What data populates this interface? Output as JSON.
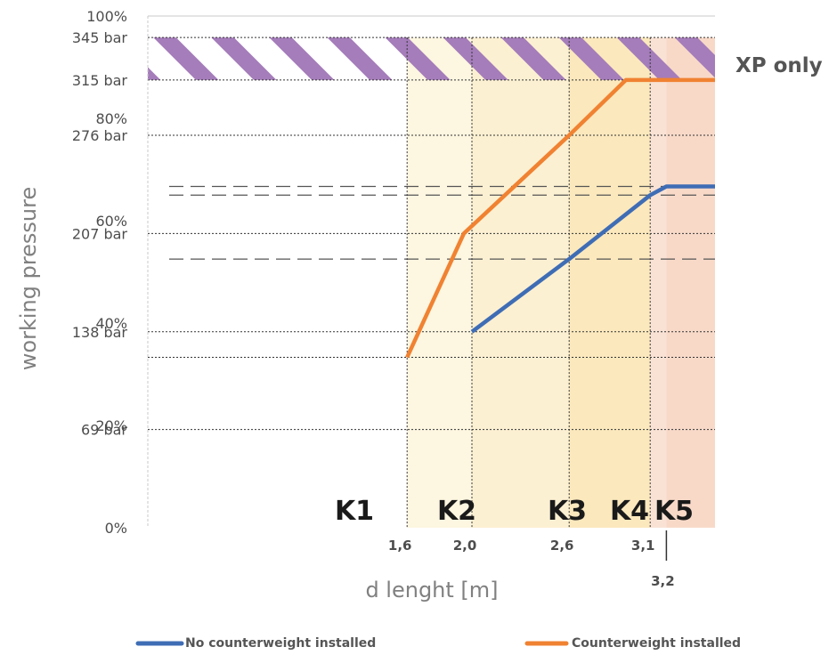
{
  "chart_data": {
    "type": "line",
    "xlabel": "d lenght [m]",
    "ylabel": "working pressure",
    "xlim": [
      0,
      3.5
    ],
    "ylim": [
      0,
      100
    ],
    "y_ticks": [
      {
        "pct": 100,
        "label": "100%"
      },
      {
        "pct": 95.8,
        "label": "345 bar"
      },
      {
        "pct": 87.5,
        "label": "315 bar"
      },
      {
        "pct": 80,
        "label": "80%"
      },
      {
        "pct": 76.7,
        "label": "276 bar"
      },
      {
        "pct": 60,
        "label": "60%"
      },
      {
        "pct": 57.5,
        "label": "207 bar"
      },
      {
        "pct": 40,
        "label": "40%"
      },
      {
        "pct": 38.3,
        "label": "138 bar"
      },
      {
        "pct": 20,
        "label": "20%"
      },
      {
        "pct": 19.2,
        "label": "69 bar"
      },
      {
        "pct": 0,
        "label": "0%"
      }
    ],
    "dotted_gridlines_y": [
      95.8,
      87.5,
      76.7,
      57.5,
      38.3,
      33.3,
      19.2
    ],
    "dashed_gridlines_y": [
      66.7,
      65,
      52.5
    ],
    "x_ticks_upper": [
      {
        "x": 1.6,
        "label": "1,6"
      },
      {
        "x": 2.0,
        "label": "2,0"
      },
      {
        "x": 2.6,
        "label": "2,6"
      },
      {
        "x": 3.1,
        "label": "3,1"
      }
    ],
    "x_ticks_lower": [
      {
        "x": 3.2,
        "label": "3,2"
      }
    ],
    "zones": [
      {
        "label": "K1",
        "from": 1.6,
        "to": 2.0,
        "color": "#fdf6e0"
      },
      {
        "label": "K2",
        "from": 2.0,
        "to": 2.6,
        "color": "#fcf0d2"
      },
      {
        "label": "K3",
        "from": 2.6,
        "to": 3.1,
        "color": "#fbe8bd"
      },
      {
        "label": "K4",
        "from": 3.1,
        "to": 3.2,
        "color": "#f9e2d4"
      },
      {
        "label": "K5",
        "from": 3.2,
        "to": 3.5,
        "color": "#f8d9c8"
      }
    ],
    "xp_band": {
      "label": "XP only",
      "from_pct": 87.5,
      "to_pct": 95.8,
      "color": "#a57dba"
    },
    "series": [
      {
        "name": "No counterweight installed",
        "color": "#3f6db5",
        "x": [
          2.0,
          2.6,
          3.1,
          3.2,
          3.5
        ],
        "y": [
          38.3,
          52.5,
          65,
          66.7,
          66.7
        ]
      },
      {
        "name": "Counterweight installed",
        "color": "#f08232",
        "x": [
          1.6,
          1.95,
          2.6,
          2.95,
          3.5
        ],
        "y": [
          33.3,
          57.5,
          76.7,
          87.5,
          87.5
        ]
      }
    ]
  }
}
